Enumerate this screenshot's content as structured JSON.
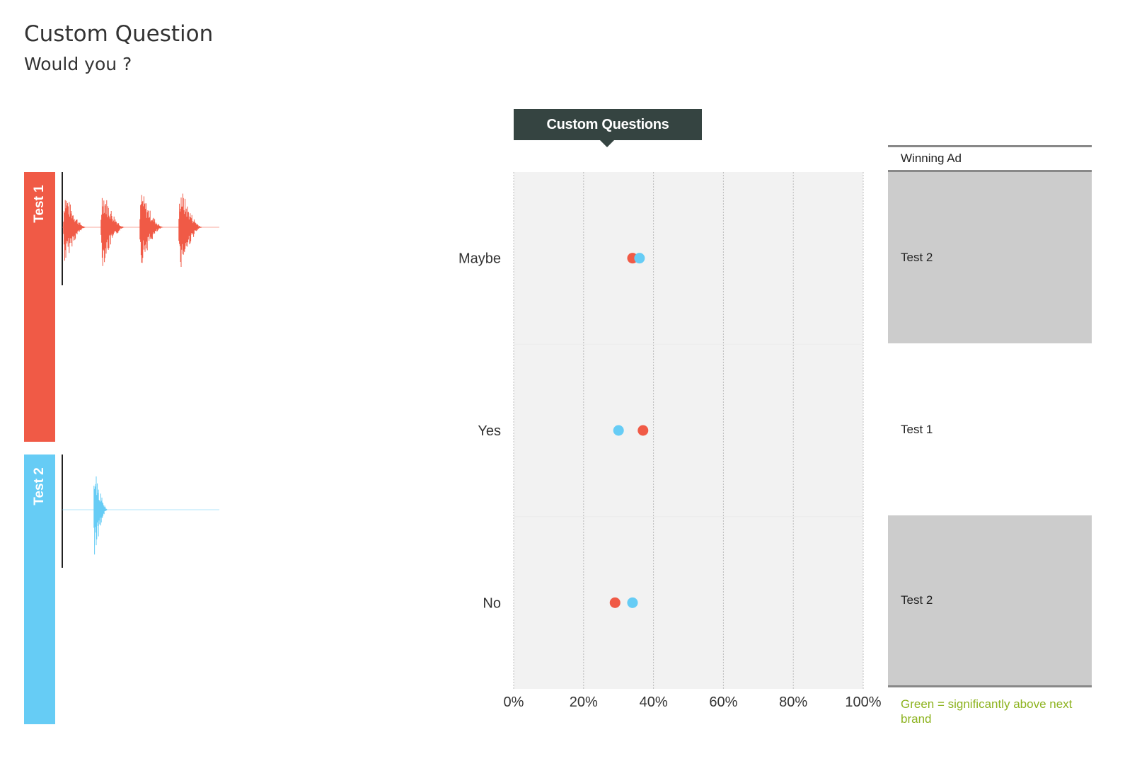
{
  "page": {
    "title": "Custom Question",
    "subtitle": "Would you ?"
  },
  "tests": [
    {
      "label": "Test 1",
      "color": "#f05a46"
    },
    {
      "label": "Test 2",
      "color": "#66ccf5"
    }
  ],
  "chart_data": {
    "type": "scatter",
    "title": "Custom Questions",
    "categories": [
      "Maybe",
      "Yes",
      "No"
    ],
    "series": [
      {
        "name": "Test 1",
        "color": "#f05a46",
        "values": [
          34,
          37,
          29
        ]
      },
      {
        "name": "Test 2",
        "color": "#66ccf5",
        "values": [
          36,
          30,
          34
        ]
      }
    ],
    "xlim": [
      0,
      100
    ],
    "x_ticks": [
      "0%",
      "20%",
      "40%",
      "60%",
      "80%",
      "100%"
    ],
    "x_tick_values": [
      0,
      20,
      40,
      60,
      80,
      100
    ],
    "grid": true,
    "plot_background": "#f2f2f2"
  },
  "winners": {
    "header": "Winning Ad",
    "rows": [
      {
        "category": "Maybe",
        "winner": "Test 2",
        "highlight": "#cccccc"
      },
      {
        "category": "Yes",
        "winner": "Test 1",
        "highlight": "#ffffff"
      },
      {
        "category": "No",
        "winner": "Test 2",
        "highlight": "#cccccc"
      }
    ]
  },
  "legend_note": "Green = significantly above next brand"
}
